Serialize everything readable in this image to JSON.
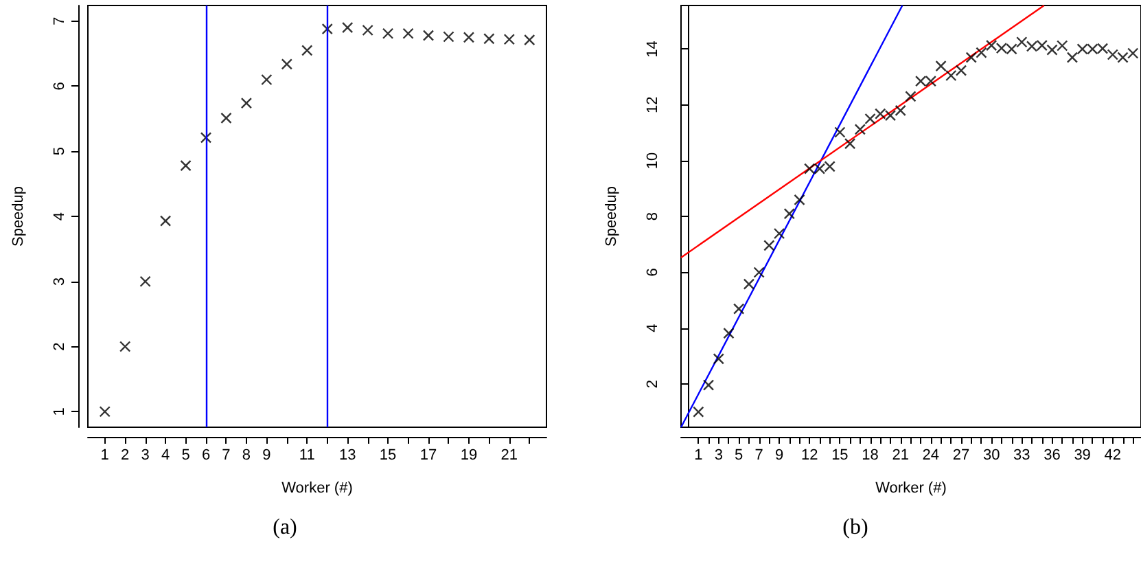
{
  "chart_data": [
    {
      "type": "scatter",
      "xlabel": "Worker (#)",
      "ylabel": "Speedup",
      "annotations": [
        "(a)"
      ],
      "marker": "cross",
      "grid": false,
      "xlim": [
        0.16,
        22.84
      ],
      "ylim": [
        0.76,
        7.24
      ],
      "xticks": [
        1,
        2,
        3,
        4,
        5,
        6,
        7,
        8,
        9,
        {
          "value": 10,
          "label": null
        },
        11,
        {
          "value": 12,
          "label": null
        },
        13,
        {
          "value": 14,
          "label": null
        },
        15,
        {
          "value": 16,
          "label": null
        },
        17,
        {
          "value": 18,
          "label": null
        },
        19,
        {
          "value": 20,
          "label": null
        },
        21,
        {
          "value": 22,
          "label": null
        }
      ],
      "yticks": [
        1,
        2,
        3,
        4,
        5,
        6,
        7
      ],
      "ref_lines": [
        {
          "axis": "x",
          "value": 6,
          "color": "#0000ff"
        },
        {
          "axis": "x",
          "value": 12,
          "color": "#0000ff"
        }
      ],
      "series": [
        {
          "color": "#000000",
          "x": [
            1,
            2,
            3,
            4,
            5,
            6,
            7,
            8,
            9,
            10,
            11,
            12,
            13,
            14,
            15,
            16,
            17,
            18,
            19,
            20,
            21,
            22
          ],
          "values": [
            1,
            2,
            3,
            3.93,
            4.78,
            5.21,
            5.51,
            5.74,
            6.1,
            6.34,
            6.55,
            6.88,
            6.9,
            6.86,
            6.81,
            6.81,
            6.78,
            6.76,
            6.75,
            6.73,
            6.72,
            6.71
          ]
        }
      ]
    },
    {
      "type": "scatter",
      "xlabel": "Worker (#)",
      "ylabel": "Speedup",
      "annotations": [
        "(b)"
      ],
      "marker": "cross",
      "grid": false,
      "xlim": [
        -0.72,
        44.8
      ],
      "ylim": [
        0.45,
        15.56
      ],
      "xticks": [
        1,
        {
          "value": 2,
          "label": null
        },
        3,
        {
          "value": 4,
          "label": null
        },
        5,
        {
          "value": 6,
          "label": null
        },
        7,
        {
          "value": 8,
          "label": null
        },
        9,
        {
          "value": 10,
          "label": null
        },
        {
          "value": 11,
          "label": null
        },
        12,
        {
          "value": 13,
          "label": null
        },
        {
          "value": 14,
          "label": null
        },
        15,
        {
          "value": 16,
          "label": null
        },
        {
          "value": 17,
          "label": null
        },
        18,
        {
          "value": 19,
          "label": null
        },
        {
          "value": 20,
          "label": null
        },
        21,
        {
          "value": 22,
          "label": null
        },
        {
          "value": 23,
          "label": null
        },
        24,
        {
          "value": 25,
          "label": null
        },
        {
          "value": 26,
          "label": null
        },
        27,
        {
          "value": 28,
          "label": null
        },
        {
          "value": 29,
          "label": null
        },
        30,
        {
          "value": 31,
          "label": null
        },
        {
          "value": 32,
          "label": null
        },
        33,
        {
          "value": 34,
          "label": null
        },
        {
          "value": 35,
          "label": null
        },
        36,
        {
          "value": 37,
          "label": null
        },
        {
          "value": 38,
          "label": null
        },
        39,
        {
          "value": 40,
          "label": null
        },
        {
          "value": 41,
          "label": null
        },
        42,
        {
          "value": 43,
          "label": null
        },
        {
          "value": 44,
          "label": null
        }
      ],
      "yticks": [
        2,
        4,
        6,
        8,
        10,
        12,
        14
      ],
      "series": [
        {
          "color": "#000000",
          "x": [
            1,
            2,
            3,
            4,
            5,
            6,
            7,
            8,
            9,
            10,
            11,
            12,
            13,
            14,
            15,
            16,
            17,
            18,
            19,
            20,
            21,
            22,
            23,
            24,
            25,
            26,
            27,
            28,
            29,
            30,
            31,
            32,
            33,
            34,
            35,
            36,
            37,
            38,
            39,
            40,
            41,
            42,
            43,
            44
          ],
          "values": [
            1.0,
            1.96,
            2.9,
            3.82,
            4.69,
            5.58,
            6.0,
            6.96,
            7.39,
            8.1,
            8.6,
            9.71,
            9.71,
            9.79,
            11.02,
            10.61,
            11.12,
            11.5,
            11.68,
            11.62,
            11.8,
            12.3,
            12.85,
            12.85,
            13.39,
            13.05,
            13.23,
            13.7,
            13.87,
            14.13,
            14.03,
            14.0,
            14.25,
            14.1,
            14.13,
            13.97,
            14.12,
            13.7,
            14.0,
            14.0,
            14.02,
            13.8,
            13.7,
            13.85
          ]
        },
        {
          "type": "line",
          "marker": "none",
          "color": "#0000ff",
          "x": [
            -0.72,
            21.18
          ],
          "values": [
            0.45,
            15.56
          ]
        },
        {
          "type": "line",
          "marker": "none",
          "color": "#ff0000",
          "x": [
            -0.72,
            35.2
          ],
          "values": [
            6.53,
            15.56
          ]
        }
      ]
    }
  ]
}
